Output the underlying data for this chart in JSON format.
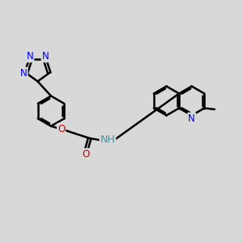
{
  "bg_color": "#d8d8d8",
  "bond_color": "#000000",
  "bond_width": 1.8,
  "atom_colors": {
    "N": "#0000ee",
    "O": "#cc0000",
    "NH": "#3399aa",
    "C": "#000000"
  },
  "font_size": 8.5,
  "fig_size": [
    3.0,
    3.0
  ],
  "dpi": 100
}
